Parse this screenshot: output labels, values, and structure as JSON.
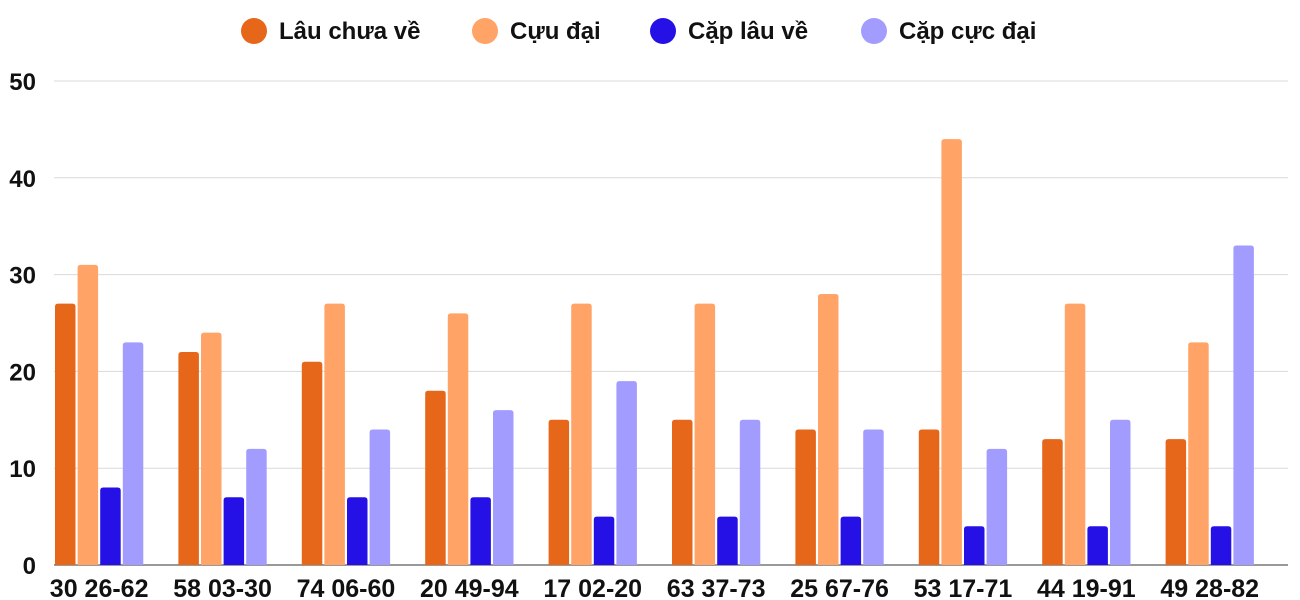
{
  "chart_data": {
    "type": "bar",
    "title": "",
    "xlabel": "",
    "ylabel": "",
    "ylim": [
      0,
      50
    ],
    "yticks": [
      0,
      10,
      20,
      30,
      40,
      50
    ],
    "grid": true,
    "legend_position": "top-center",
    "categories": [
      "30 26-62",
      "58 03-30",
      "74 06-60",
      "20 49-94",
      "17 02-20",
      "63 37-73",
      "25 67-76",
      "53 17-71",
      "44 19-91",
      "49 28-82"
    ],
    "series": [
      {
        "name": "Lâu chưa về",
        "color": "#e6661a",
        "values": [
          27,
          22,
          21,
          18,
          15,
          15,
          14,
          14,
          13,
          13
        ]
      },
      {
        "name": "Cựu đại",
        "color": "#ffa366",
        "values": [
          31,
          24,
          27,
          26,
          27,
          27,
          28,
          44,
          27,
          23
        ]
      },
      {
        "name": "Cặp lâu về",
        "color": "#2511e6",
        "values": [
          8,
          7,
          7,
          7,
          5,
          5,
          5,
          4,
          4,
          4
        ]
      },
      {
        "name": "Cặp cực đại",
        "color": "#a39cff",
        "values": [
          23,
          12,
          14,
          16,
          19,
          15,
          14,
          12,
          15,
          33
        ]
      }
    ]
  }
}
